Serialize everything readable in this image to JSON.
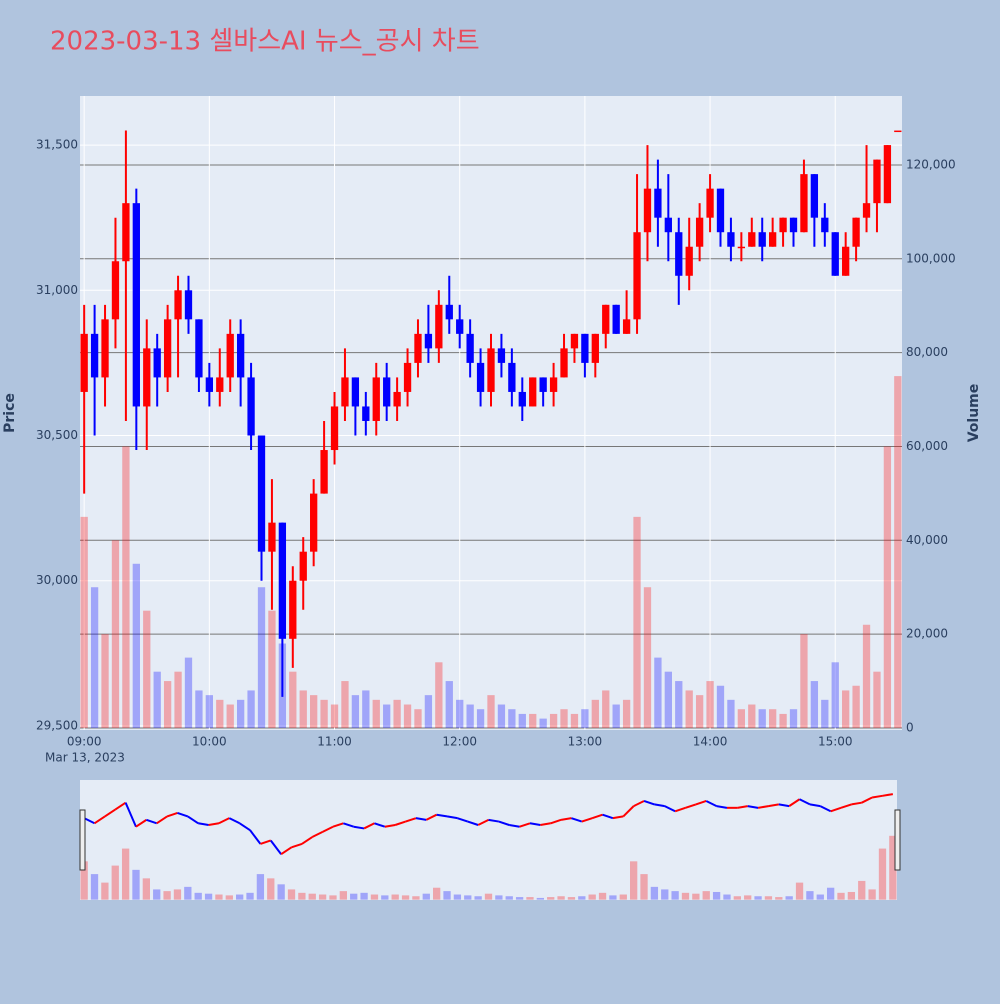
{
  "chart_data": {
    "type": "candlestick",
    "title": "2023-03-13 셀바스AI 뉴스_공시 차트",
    "y_label": "Price",
    "y2_label": "Volume",
    "date_label": "Mar 13, 2023",
    "up_color": "#ff0000",
    "down_color": "#0000ff",
    "x": [
      "09:00",
      "09:05",
      "09:10",
      "09:15",
      "09:20",
      "09:25",
      "09:30",
      "09:35",
      "09:40",
      "09:45",
      "09:50",
      "09:55",
      "10:00",
      "10:05",
      "10:10",
      "10:15",
      "10:20",
      "10:25",
      "10:30",
      "10:35",
      "10:40",
      "10:45",
      "10:50",
      "10:55",
      "11:00",
      "11:05",
      "11:10",
      "11:15",
      "11:20",
      "11:25",
      "11:30",
      "11:35",
      "11:40",
      "11:45",
      "11:50",
      "11:55",
      "12:00",
      "12:05",
      "12:10",
      "12:15",
      "12:20",
      "12:25",
      "12:30",
      "12:35",
      "12:40",
      "12:45",
      "12:50",
      "12:55",
      "13:00",
      "13:05",
      "13:10",
      "13:15",
      "13:20",
      "13:25",
      "13:30",
      "13:35",
      "13:40",
      "13:45",
      "13:50",
      "13:55",
      "14:00",
      "14:05",
      "14:10",
      "14:15",
      "14:20",
      "14:25",
      "14:30",
      "14:35",
      "14:40",
      "14:45",
      "14:50",
      "14:55",
      "15:00",
      "15:05",
      "15:10",
      "15:15",
      "15:20",
      "15:25",
      "15:30"
    ],
    "open": [
      30650,
      30850,
      30700,
      30900,
      31100,
      31300,
      30600,
      30800,
      30700,
      30900,
      31000,
      30900,
      30700,
      30650,
      30700,
      30850,
      30700,
      30500,
      30100,
      30200,
      29800,
      30000,
      30100,
      30300,
      30450,
      30600,
      30700,
      30600,
      30550,
      30700,
      30600,
      30650,
      30750,
      30850,
      30800,
      30950,
      30900,
      30850,
      30750,
      30650,
      30800,
      30750,
      30650,
      30600,
      30700,
      30650,
      30700,
      30800,
      30850,
      30750,
      30850,
      30950,
      30850,
      30900,
      31200,
      31350,
      31250,
      31200,
      31050,
      31150,
      31250,
      31350,
      31200,
      31150,
      31150,
      31200,
      31150,
      31200,
      31250,
      31200,
      31400,
      31250,
      31200,
      31050,
      31150,
      31250,
      31300,
      31300,
      31550
    ],
    "high": [
      30950,
      30950,
      30950,
      31250,
      31550,
      31350,
      30900,
      30850,
      30950,
      31050,
      31050,
      30900,
      30750,
      30800,
      30900,
      30900,
      30750,
      30500,
      30350,
      30200,
      30050,
      30150,
      30350,
      30550,
      30650,
      30800,
      30700,
      30650,
      30750,
      30750,
      30700,
      30800,
      30900,
      30950,
      31000,
      31050,
      30950,
      30900,
      30800,
      30850,
      30850,
      30800,
      30700,
      30700,
      30700,
      30750,
      30850,
      30850,
      30850,
      30850,
      30950,
      30950,
      31000,
      31400,
      31500,
      31450,
      31400,
      31250,
      31250,
      31300,
      31400,
      31350,
      31250,
      31200,
      31250,
      31250,
      31250,
      31250,
      31250,
      31450,
      31400,
      31300,
      31200,
      31200,
      31250,
      31500,
      31450,
      31500,
      31550
    ],
    "low": [
      30300,
      30500,
      30600,
      30800,
      30550,
      30450,
      30450,
      30600,
      30650,
      30700,
      30850,
      30650,
      30600,
      30600,
      30650,
      30600,
      30450,
      30000,
      29900,
      29600,
      29700,
      29900,
      30050,
      30300,
      30400,
      30550,
      30500,
      30500,
      30500,
      30550,
      30550,
      30600,
      30700,
      30750,
      30750,
      30850,
      30800,
      30700,
      30600,
      30600,
      30700,
      30600,
      30550,
      30600,
      30600,
      30600,
      30700,
      30750,
      30700,
      30700,
      30800,
      30850,
      30850,
      30850,
      31100,
      31150,
      31100,
      30950,
      31000,
      31100,
      31200,
      31150,
      31100,
      31100,
      31150,
      31100,
      31150,
      31150,
      31150,
      31200,
      31150,
      31150,
      31050,
      31050,
      31100,
      31200,
      31200,
      31300,
      31550
    ],
    "close": [
      30850,
      30700,
      30900,
      31100,
      31300,
      30600,
      30800,
      30700,
      30900,
      31000,
      30900,
      30700,
      30650,
      30700,
      30850,
      30700,
      30500,
      30100,
      30200,
      29800,
      30000,
      30100,
      30300,
      30450,
      30600,
      30700,
      30600,
      30550,
      30700,
      30600,
      30650,
      30750,
      30850,
      30800,
      30950,
      30900,
      30850,
      30750,
      30650,
      30800,
      30750,
      30650,
      30600,
      30700,
      30650,
      30700,
      30800,
      30850,
      30750,
      30850,
      30950,
      30850,
      30900,
      31200,
      31350,
      31250,
      31200,
      31050,
      31150,
      31250,
      31350,
      31200,
      31150,
      31150,
      31200,
      31150,
      31200,
      31250,
      31200,
      31400,
      31250,
      31200,
      31050,
      31150,
      31250,
      31300,
      31450,
      31500,
      31550
    ],
    "volume": [
      45000,
      30000,
      20000,
      40000,
      60000,
      35000,
      25000,
      12000,
      10000,
      12000,
      15000,
      8000,
      7000,
      6000,
      5000,
      6000,
      8000,
      30000,
      25000,
      18000,
      12000,
      8000,
      7000,
      6000,
      5000,
      10000,
      7000,
      8000,
      6000,
      5000,
      6000,
      5000,
      4000,
      7000,
      14000,
      10000,
      6000,
      5000,
      4000,
      7000,
      5000,
      4000,
      3000,
      3000,
      2000,
      3000,
      4000,
      3000,
      4000,
      6000,
      8000,
      5000,
      6000,
      45000,
      30000,
      15000,
      12000,
      10000,
      8000,
      7000,
      10000,
      9000,
      6000,
      4000,
      5000,
      4000,
      4000,
      3000,
      4000,
      20000,
      10000,
      6000,
      14000,
      8000,
      9000,
      22000,
      12000,
      60000,
      75000
    ],
    "xlim": [
      "08:58",
      "15:32"
    ],
    "xticks": [
      "09:00",
      "10:00",
      "11:00",
      "12:00",
      "13:00",
      "14:00",
      "15:00"
    ],
    "ylim": [
      29486,
      31669
    ],
    "yticks": [
      {
        "value": 29500,
        "label": "29,500"
      },
      {
        "value": 30000,
        "label": "30,000"
      },
      {
        "value": 30500,
        "label": "30,500"
      },
      {
        "value": 31000,
        "label": "31,000"
      },
      {
        "value": 31500,
        "label": "31,500"
      }
    ],
    "y2lim": [
      -430,
      134700
    ],
    "y2ticks": [
      0,
      {
        "value": 20000,
        "label": "20,000"
      },
      {
        "value": 40000,
        "label": "40,000"
      },
      {
        "value": 60000,
        "label": "60,000"
      },
      {
        "value": 80000,
        "label": "80,000"
      },
      {
        "value": 100000,
        "label": "100,000"
      },
      {
        "value": 120000,
        "label": "120,000"
      }
    ]
  }
}
